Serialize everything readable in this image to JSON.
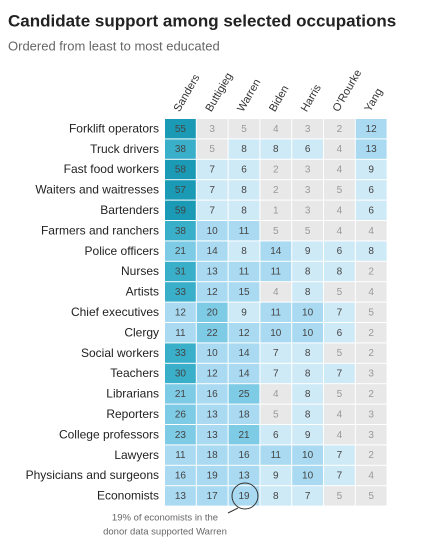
{
  "chart_data": {
    "type": "heatmap",
    "title": "Candidate support among selected occupations",
    "subtitle": "Ordered from least to most educated",
    "columns": [
      "Sanders",
      "Buttigieg",
      "Warren",
      "Biden",
      "Harris",
      "O’Rourke",
      "Yang"
    ],
    "categories": [
      "Forklift operators",
      "Truck drivers",
      "Fast food workers",
      "Waiters and waitresses",
      "Bartenders",
      "Farmers and ranchers",
      "Police officers",
      "Nurses",
      "Artists",
      "Chief executives",
      "Clergy",
      "Social workers",
      "Teachers",
      "Librarians",
      "Reporters",
      "College professors",
      "Lawyers",
      "Physicians and surgeons",
      "Economists"
    ],
    "values": [
      [
        55,
        3,
        5,
        4,
        3,
        2,
        12
      ],
      [
        38,
        5,
        8,
        8,
        6,
        4,
        13
      ],
      [
        58,
        7,
        6,
        2,
        3,
        4,
        9
      ],
      [
        57,
        7,
        8,
        2,
        3,
        5,
        6
      ],
      [
        59,
        7,
        8,
        1,
        3,
        4,
        6
      ],
      [
        38,
        10,
        11,
        5,
        5,
        4,
        4
      ],
      [
        21,
        14,
        8,
        14,
        9,
        6,
        8
      ],
      [
        31,
        13,
        11,
        11,
        8,
        8,
        2
      ],
      [
        33,
        12,
        15,
        4,
        8,
        5,
        4
      ],
      [
        12,
        20,
        9,
        11,
        10,
        7,
        5
      ],
      [
        11,
        22,
        12,
        10,
        10,
        6,
        2
      ],
      [
        33,
        10,
        14,
        7,
        8,
        5,
        2
      ],
      [
        30,
        12,
        14,
        7,
        8,
        7,
        3
      ],
      [
        21,
        16,
        25,
        4,
        8,
        5,
        2
      ],
      [
        26,
        13,
        18,
        5,
        8,
        4,
        3
      ],
      [
        23,
        13,
        21,
        6,
        9,
        4,
        3
      ],
      [
        11,
        18,
        16,
        11,
        10,
        7,
        2
      ],
      [
        16,
        19,
        13,
        9,
        10,
        7,
        4
      ],
      [
        13,
        17,
        19,
        8,
        7,
        5,
        5
      ]
    ],
    "color_breaks": [
      0,
      6,
      10,
      20,
      30,
      50
    ],
    "colors": [
      "#e8e8e8",
      "#cfeaf7",
      "#a9daf2",
      "#7ecbe6",
      "#3aafca",
      "#1a9ab5"
    ],
    "annotation": [
      "19% of economists in the",
      "donor data supported Warren"
    ]
  }
}
